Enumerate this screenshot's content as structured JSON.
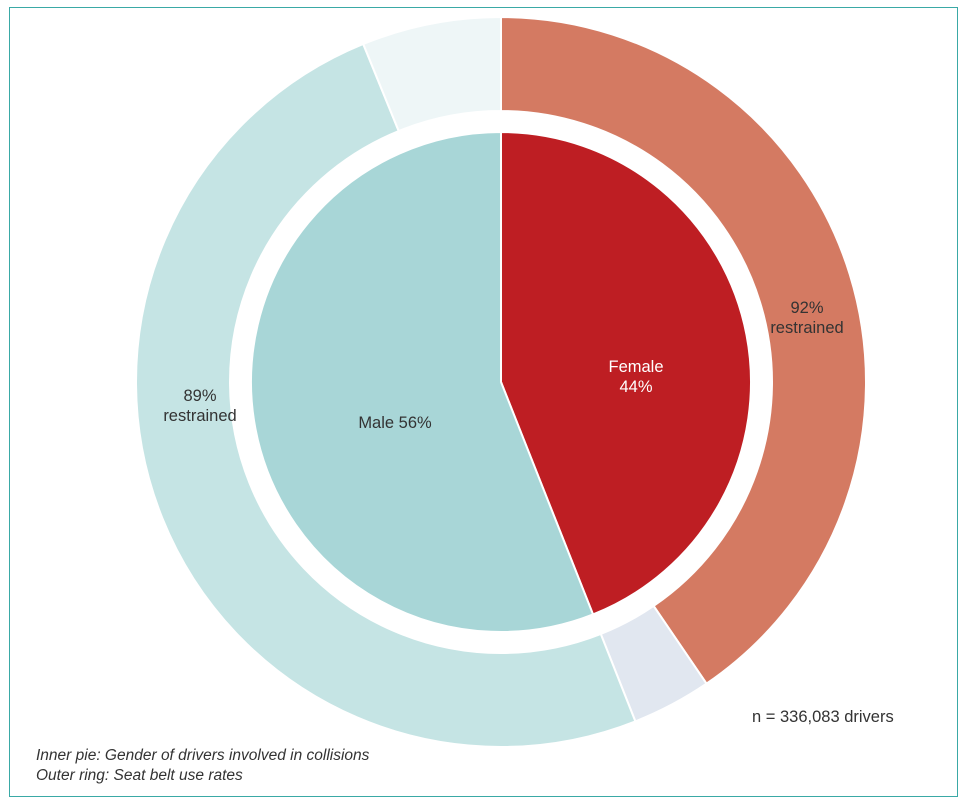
{
  "chart_data": {
    "type": "pie",
    "inner": {
      "slices": [
        {
          "name": "Female",
          "value": 44,
          "color": "#be1e23",
          "label_line1": "Female",
          "label_line2": "44%"
        },
        {
          "name": "Male",
          "value": 56,
          "color": "#a8d6d7",
          "label": "Male 56%"
        }
      ]
    },
    "outer": {
      "slices": [
        {
          "value": 40.48,
          "color": "#d47a62",
          "label_line1": "92%",
          "label_line2": "restrained"
        },
        {
          "value": 3.52,
          "color": "#e1e7f0"
        },
        {
          "value": 49.84,
          "color": "#c5e4e4",
          "label_line1": "89%",
          "label_line2": "restrained"
        },
        {
          "value": 6.16,
          "color": "#eef6f7"
        }
      ]
    },
    "note": "n = 336,083 drivers",
    "caption_line1": "Inner pie: Gender of drivers involved in collisions",
    "caption_line2": "Outer ring: Seat belt use rates"
  }
}
